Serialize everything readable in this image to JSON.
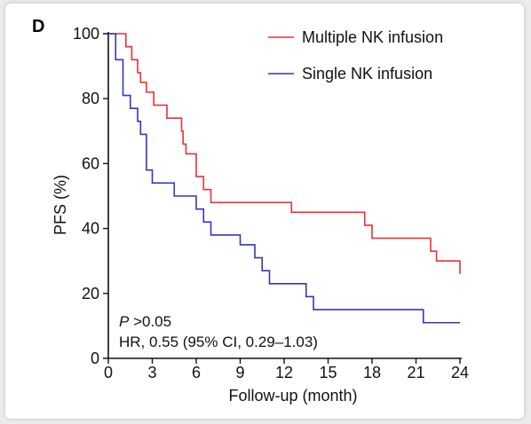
{
  "panel_label": "D",
  "chart_data": {
    "type": "line",
    "title": "",
    "xlabel": "Follow-up (month)",
    "ylabel": "PFS (%)",
    "xlim": [
      0,
      24
    ],
    "ylim": [
      0,
      100
    ],
    "xticks": [
      "0",
      "3",
      "6",
      "9",
      "12",
      "15",
      "18",
      "21",
      "24"
    ],
    "yticks": [
      "0",
      "20",
      "40",
      "60",
      "80",
      "100"
    ],
    "step": true,
    "grid": false,
    "legend_position": "top-right",
    "series": [
      {
        "name": "Multiple NK infusion",
        "color": "#e8323c",
        "x": [
          0,
          1,
          1.2,
          1.6,
          2.0,
          2.2,
          2.6,
          3.1,
          4.0,
          5.0,
          5.1,
          5.3,
          6.0,
          6.5,
          7.0,
          12.5,
          17.5,
          18.0,
          22.0,
          22.4,
          23.0,
          24.0,
          24.0
        ],
        "y": [
          100,
          100,
          96,
          92,
          88,
          85,
          82,
          78,
          74,
          70,
          66,
          63,
          56,
          52,
          48,
          45,
          41,
          37,
          33,
          30,
          30,
          30,
          26
        ]
      },
      {
        "name": "Single NK infusion",
        "color": "#3535c0",
        "x": [
          0,
          0.5,
          1.0,
          1.5,
          2.0,
          2.2,
          2.6,
          3.0,
          4.5,
          6.0,
          6.5,
          7.0,
          9.0,
          10.0,
          10.5,
          11.0,
          13.5,
          14.0,
          21.5,
          24.0
        ],
        "y": [
          100,
          92,
          81,
          77,
          73,
          69,
          58,
          54,
          50,
          46,
          42,
          38,
          35,
          31,
          27,
          23,
          19,
          15,
          11,
          11
        ]
      }
    ],
    "annotations": {
      "p_prefix": "P",
      "p_value": " >0.05",
      "hr": "HR, 0.55 (95% CI, 0.29–1.03)"
    }
  }
}
